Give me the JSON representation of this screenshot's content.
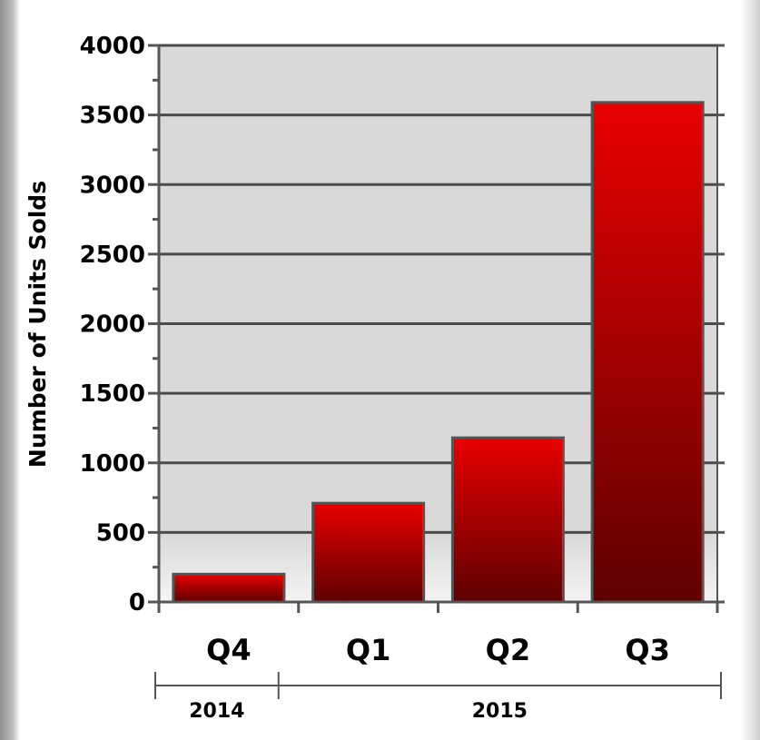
{
  "chart_data": {
    "type": "bar",
    "categories": [
      "Q4",
      "Q1",
      "Q2",
      "Q3"
    ],
    "groups": [
      {
        "label": "2014",
        "categories": [
          "Q4"
        ]
      },
      {
        "label": "2015",
        "categories": [
          "Q1",
          "Q2",
          "Q3"
        ]
      }
    ],
    "values": [
      200,
      710,
      1180,
      3590
    ],
    "title": "",
    "xlabel": "",
    "ylabel": "Number of Units Solds",
    "ylim": [
      0,
      4000
    ],
    "y_ticks": [
      "0",
      "500",
      "1000",
      "1500",
      "2000",
      "2500",
      "3000",
      "3500",
      "4000"
    ],
    "grid": true,
    "colors": {
      "bar_top": "#e80000",
      "bar_bottom": "#5e0000",
      "bar_stroke": "#555555",
      "plot_background": "#d9d9d9",
      "gridline": "#4a4a4a"
    }
  }
}
